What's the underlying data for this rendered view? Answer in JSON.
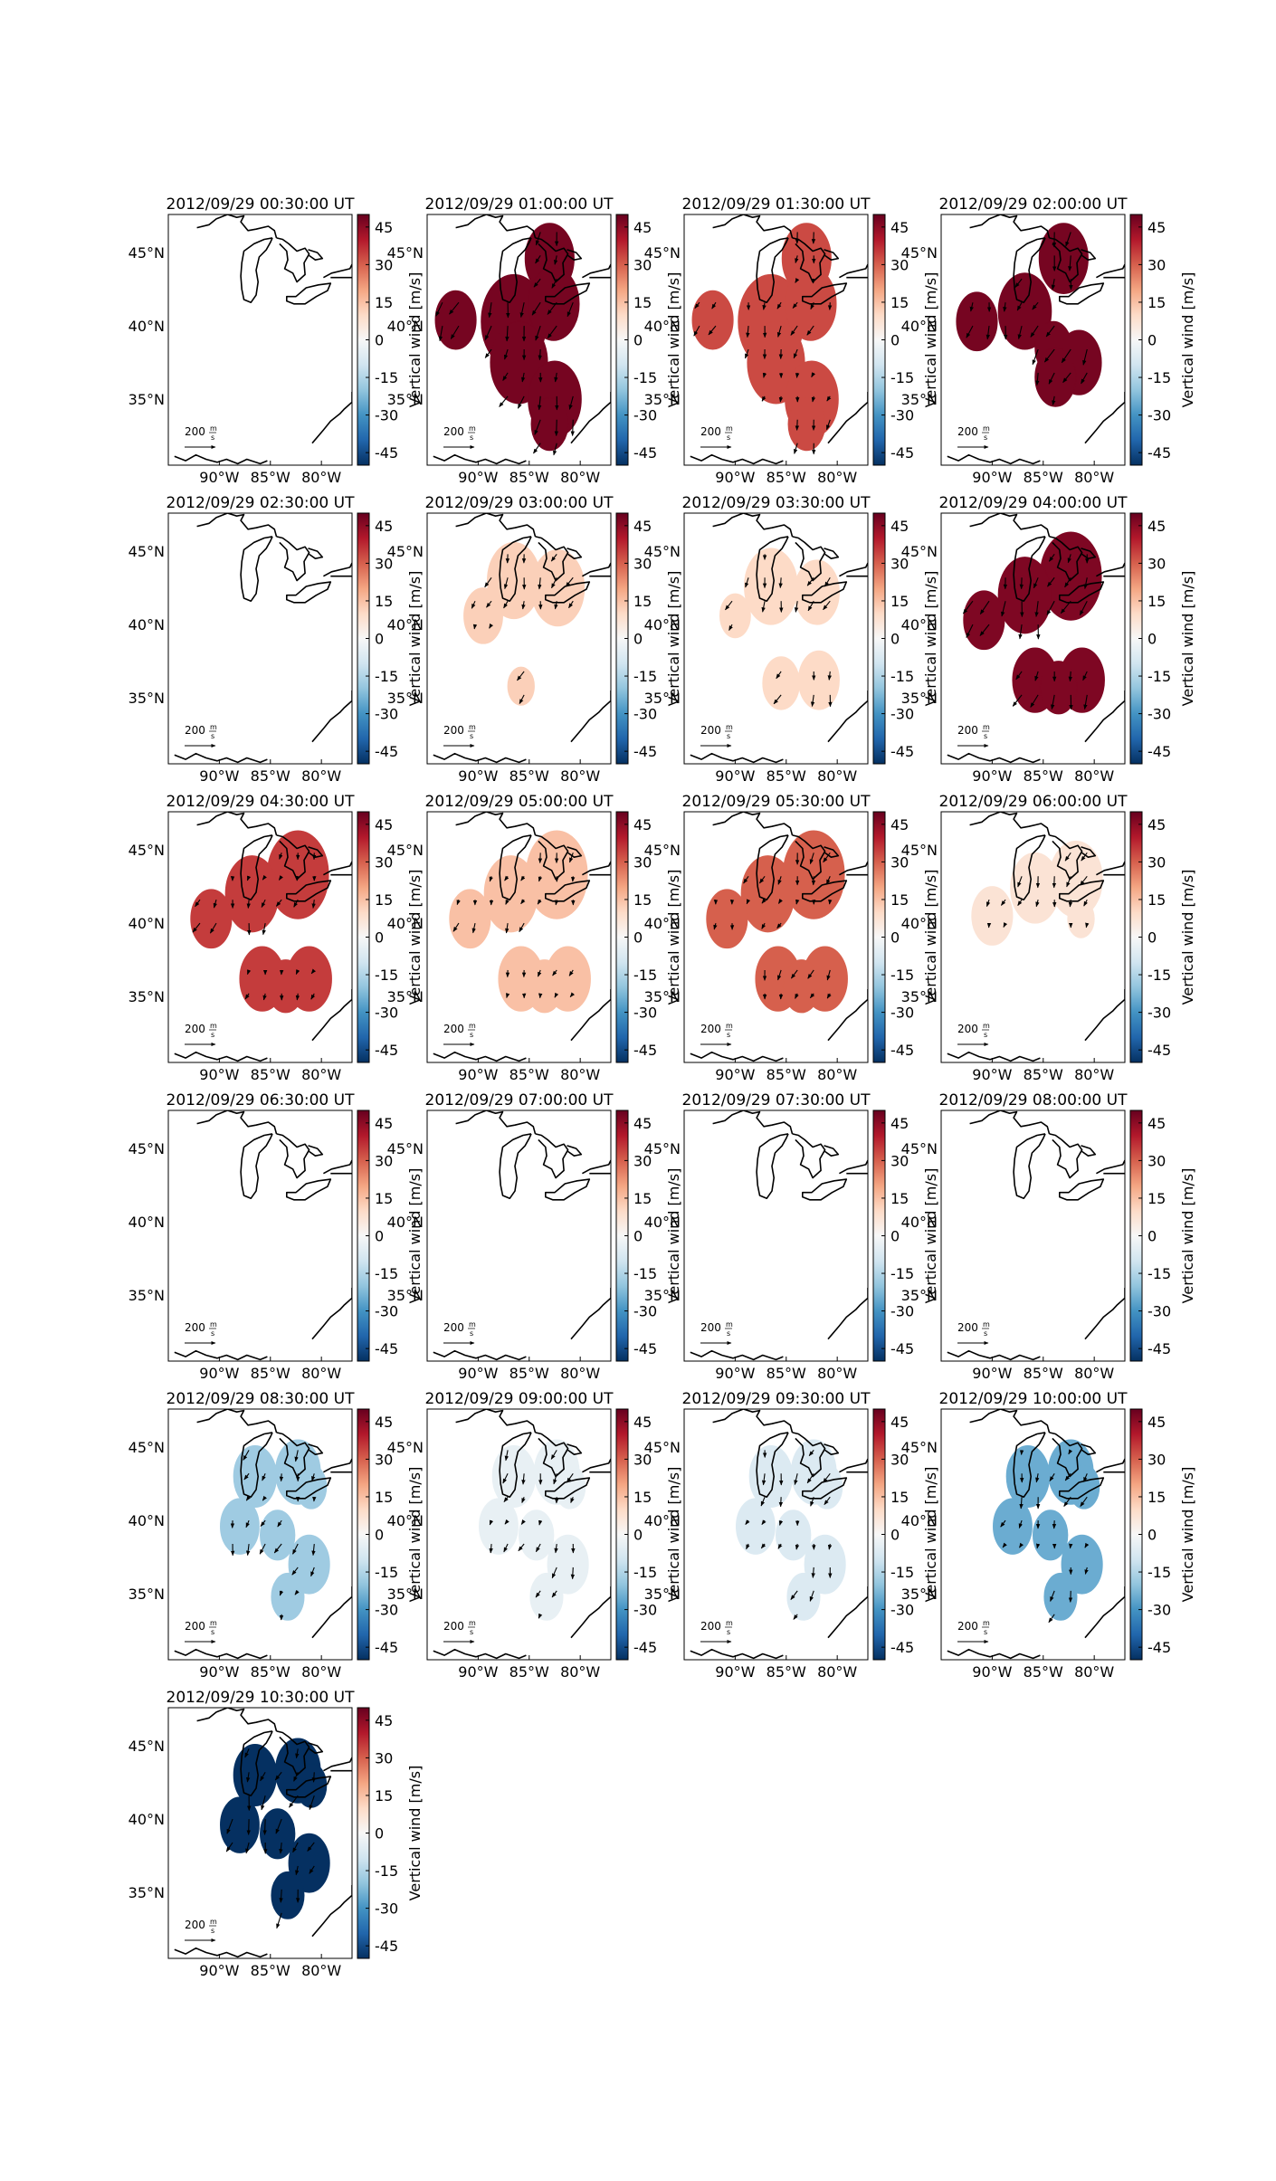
{
  "colorbar": {
    "label": "Vertical wind [m/s]",
    "ticks": [
      45,
      30,
      15,
      0,
      -15,
      -30,
      -45
    ],
    "range": [
      -50,
      50
    ],
    "colors": {
      "neg_strong": "#053061",
      "neg": "#2166ac",
      "neg_mid": "#4393c3",
      "neg_light": "#92c5de",
      "neg_pale": "#d1e5f0",
      "zero": "#f7f7f7",
      "pos_pale": "#fddbc7",
      "pos_light": "#f4a582",
      "pos_mid": "#d6604d",
      "pos": "#b2182b",
      "pos_strong": "#67001f"
    }
  },
  "lat_labels": [
    "45°N",
    "40°N",
    "35°N"
  ],
  "lon_labels": [
    "90°W",
    "85°W",
    "80°W"
  ],
  "scale_arrow": {
    "value": "200",
    "unit_num": "m",
    "unit_den": "s"
  },
  "panels": [
    {
      "title": "2012/09/29 00:30:00 UT",
      "wind": null,
      "region": "none"
    },
    {
      "title": "2012/09/29 01:00:00 UT",
      "wind": 48,
      "region": "A"
    },
    {
      "title": "2012/09/29 01:30:00 UT",
      "wind": 33,
      "region": "A"
    },
    {
      "title": "2012/09/29 02:00:00 UT",
      "wind": 48,
      "region": "B"
    },
    {
      "title": "2012/09/29 02:30:00 UT",
      "wind": null,
      "region": "none"
    },
    {
      "title": "2012/09/29 03:00:00 UT",
      "wind": 12,
      "region": "C"
    },
    {
      "title": "2012/09/29 03:30:00 UT",
      "wind": 10,
      "region": "D"
    },
    {
      "title": "2012/09/29 04:00:00 UT",
      "wind": 47,
      "region": "E"
    },
    {
      "title": "2012/09/29 04:30:00 UT",
      "wind": 35,
      "region": "E"
    },
    {
      "title": "2012/09/29 05:00:00 UT",
      "wind": 15,
      "region": "E"
    },
    {
      "title": "2012/09/29 05:30:00 UT",
      "wind": 30,
      "region": "E"
    },
    {
      "title": "2012/09/29 06:00:00 UT",
      "wind": 7,
      "region": "F"
    },
    {
      "title": "2012/09/29 06:30:00 UT",
      "wind": null,
      "region": "none"
    },
    {
      "title": "2012/09/29 07:00:00 UT",
      "wind": null,
      "region": "none"
    },
    {
      "title": "2012/09/29 07:30:00 UT",
      "wind": null,
      "region": "none"
    },
    {
      "title": "2012/09/29 08:00:00 UT",
      "wind": null,
      "region": "none"
    },
    {
      "title": "2012/09/29 08:30:00 UT",
      "wind": -18,
      "region": "G"
    },
    {
      "title": "2012/09/29 09:00:00 UT",
      "wind": -4,
      "region": "G"
    },
    {
      "title": "2012/09/29 09:30:00 UT",
      "wind": -7,
      "region": "G"
    },
    {
      "title": "2012/09/29 10:00:00 UT",
      "wind": -25,
      "region": "G"
    },
    {
      "title": "2012/09/29 10:30:00 UT",
      "wind": -55,
      "region": "G"
    }
  ]
}
